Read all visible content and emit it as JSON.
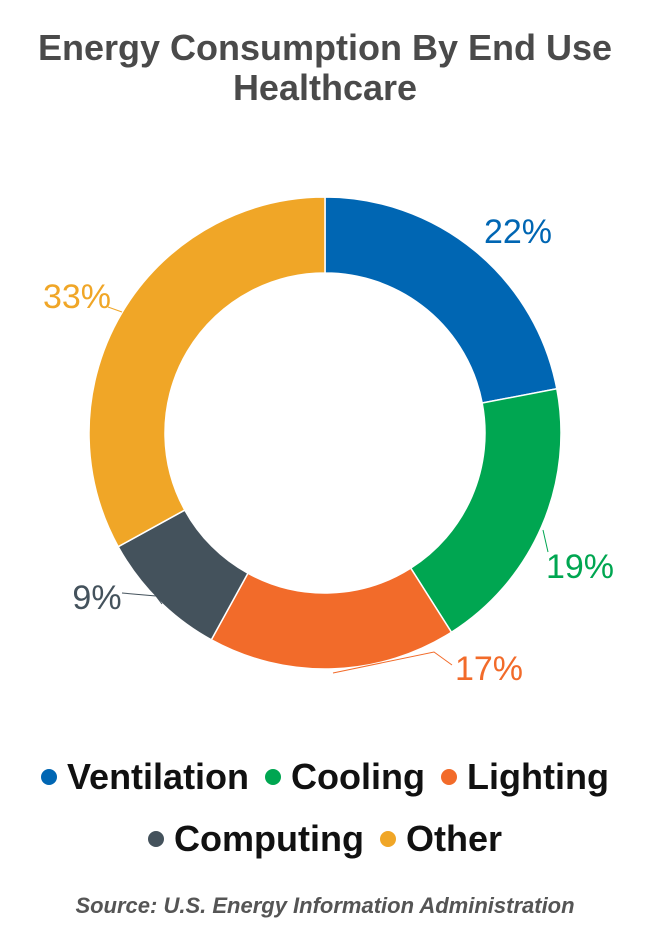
{
  "title_line1": "Energy Consumption By End Use",
  "title_line2": "Healthcare",
  "source": "Source: U.S. Energy Information Administration",
  "chart_data": {
    "type": "pie",
    "donut": true,
    "title": "Energy Consumption By End Use Healthcare",
    "categories": [
      "Ventilation",
      "Cooling",
      "Lighting",
      "Computing",
      "Other"
    ],
    "values": [
      22,
      19,
      17,
      9,
      33
    ],
    "labels": [
      "22%",
      "19%",
      "17%",
      "9%",
      "33%"
    ],
    "colors": [
      "#0066b3",
      "#00a651",
      "#f26b2a",
      "#44525c",
      "#f0a627"
    ],
    "legend_placement": "bottom"
  }
}
